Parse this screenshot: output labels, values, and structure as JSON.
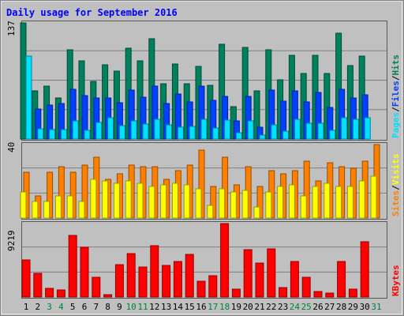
{
  "title": "Daily usage for September 2016",
  "colors": {
    "background": "#c0c0c0",
    "border_dark": "#404040",
    "title": "#0000ff",
    "hits": "#00805c",
    "files": "#0040ff",
    "pages": "#00e0ff",
    "visits": "#ff8000",
    "sites": "#ffff00",
    "kbytes": "#ff0000",
    "weekend_label": "#008040",
    "weekday_label": "#000000"
  },
  "chart_data": [
    {
      "type": "bar",
      "panel": "hits-files-pages",
      "categories": [
        "1",
        "2",
        "3",
        "4",
        "5",
        "6",
        "7",
        "8",
        "9",
        "10",
        "11",
        "12",
        "13",
        "14",
        "15",
        "16",
        "17",
        "18",
        "19",
        "20",
        "21",
        "22",
        "23",
        "24",
        "25",
        "26",
        "27",
        "28",
        "29",
        "30",
        "31"
      ],
      "weekend_days": [
        "3",
        "4",
        "10",
        "11",
        "17",
        "18",
        "24",
        "25",
        "31"
      ],
      "ymax_label": "137",
      "ylim": [
        0,
        137
      ],
      "legend": [
        "Pages",
        "Files",
        "Hits"
      ],
      "series": [
        {
          "name": "Hits",
          "values": [
            137,
            57,
            62,
            48,
            105,
            92,
            68,
            88,
            80,
            107,
            92,
            118,
            65,
            89,
            65,
            86,
            63,
            112,
            38,
            108,
            57,
            105,
            70,
            99,
            77,
            99,
            77,
            125,
            87,
            98,
            0
          ]
        },
        {
          "name": "Files",
          "values": [
            0,
            35,
            40,
            42,
            59,
            51,
            48,
            48,
            43,
            58,
            49,
            62,
            42,
            53,
            44,
            62,
            46,
            50,
            21,
            50,
            14,
            58,
            45,
            57,
            44,
            55,
            37,
            59,
            48,
            52,
            0
          ]
        },
        {
          "name": "Pages",
          "values": [
            98,
            12,
            11,
            11,
            21,
            10,
            20,
            25,
            16,
            21,
            18,
            23,
            17,
            14,
            15,
            23,
            13,
            22,
            7,
            21,
            5,
            17,
            9,
            23,
            19,
            19,
            10,
            25,
            23,
            25,
            0
          ]
        }
      ]
    },
    {
      "type": "bar",
      "panel": "visits-sites",
      "categories": [
        "1",
        "2",
        "3",
        "4",
        "5",
        "6",
        "7",
        "8",
        "9",
        "10",
        "11",
        "12",
        "13",
        "14",
        "15",
        "16",
        "17",
        "18",
        "19",
        "20",
        "21",
        "22",
        "23",
        "24",
        "25",
        "26",
        "27",
        "28",
        "29",
        "30",
        "31"
      ],
      "ymax_label": "40",
      "ylim": [
        0,
        40
      ],
      "legend": [
        "Sites",
        "Visits"
      ],
      "series": [
        {
          "name": "Visits",
          "values": [
            25,
            12,
            25,
            28,
            25,
            29,
            33,
            21,
            24,
            29,
            28,
            28,
            21,
            26,
            29,
            37,
            17,
            33,
            18,
            28,
            17,
            26,
            24,
            26,
            31,
            20,
            30,
            28,
            27,
            31,
            40
          ]
        },
        {
          "name": "Sites",
          "values": [
            14,
            9,
            9,
            12,
            12,
            9,
            21,
            20,
            19,
            20,
            19,
            17,
            18,
            19,
            18,
            16,
            7,
            16,
            14,
            15,
            6,
            14,
            17,
            18,
            12,
            17,
            19,
            17,
            17,
            20,
            23
          ]
        }
      ]
    },
    {
      "type": "bar",
      "panel": "kbytes",
      "categories": [
        "1",
        "2",
        "3",
        "4",
        "5",
        "6",
        "7",
        "8",
        "9",
        "10",
        "11",
        "12",
        "13",
        "14",
        "15",
        "16",
        "17",
        "18",
        "19",
        "20",
        "21",
        "22",
        "23",
        "24",
        "25",
        "26",
        "27",
        "28",
        "29",
        "30",
        "31"
      ],
      "ymax_label": "9219",
      "ylim": [
        0,
        9219
      ],
      "legend": [
        "KBytes"
      ],
      "series": [
        {
          "name": "KBytes",
          "values": [
            4700,
            2950,
            1050,
            850,
            7700,
            6200,
            2500,
            280,
            4100,
            5500,
            3800,
            6400,
            4000,
            4500,
            5350,
            1950,
            2650,
            9219,
            950,
            5950,
            4300,
            6050,
            1200,
            4450,
            2450,
            680,
            450,
            4450,
            1020,
            6950,
            0
          ]
        }
      ]
    }
  ]
}
